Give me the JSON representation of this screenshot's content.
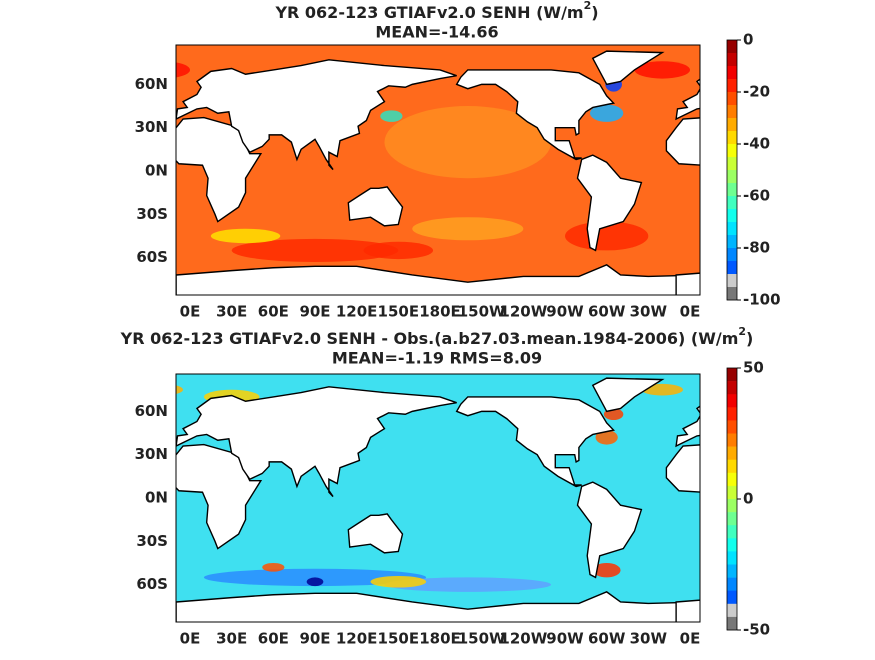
{
  "panels": [
    {
      "title": {
        "text": "YR 062-123 GTIAFv2.0  SENH (W/m",
        "superscript": "2",
        "close": ")"
      },
      "stats": "MEAN=-14.66",
      "lat_labels": [
        "60N",
        "30N",
        "0N",
        "30S",
        "60S"
      ],
      "lon_labels": [
        "0E",
        "30E",
        "60E",
        "90E",
        "120E",
        "150E",
        "180E",
        "150W",
        "120W",
        "90W",
        "60W",
        "30W",
        "0E"
      ],
      "colorbar_ticks": [
        0,
        -20,
        -40,
        -60,
        -80,
        -100
      ]
    },
    {
      "title": {
        "text": "YR 062-123 GTIAFv2.0 SENH - Obs.(a.b27.03.mean.1984-2006) (W/m",
        "superscript": "2",
        "close": ")"
      },
      "stats": "MEAN=-1.19 RMS=8.09",
      "lat_labels": [
        "60N",
        "30N",
        "0N",
        "30S",
        "60S"
      ],
      "lon_labels": [
        "0E",
        "30E",
        "60E",
        "90E",
        "120E",
        "150E",
        "180E",
        "150W",
        "120W",
        "90W",
        "60W",
        "30W",
        "0E"
      ],
      "colorbar_ticks": [
        50,
        0,
        -50
      ]
    }
  ]
}
